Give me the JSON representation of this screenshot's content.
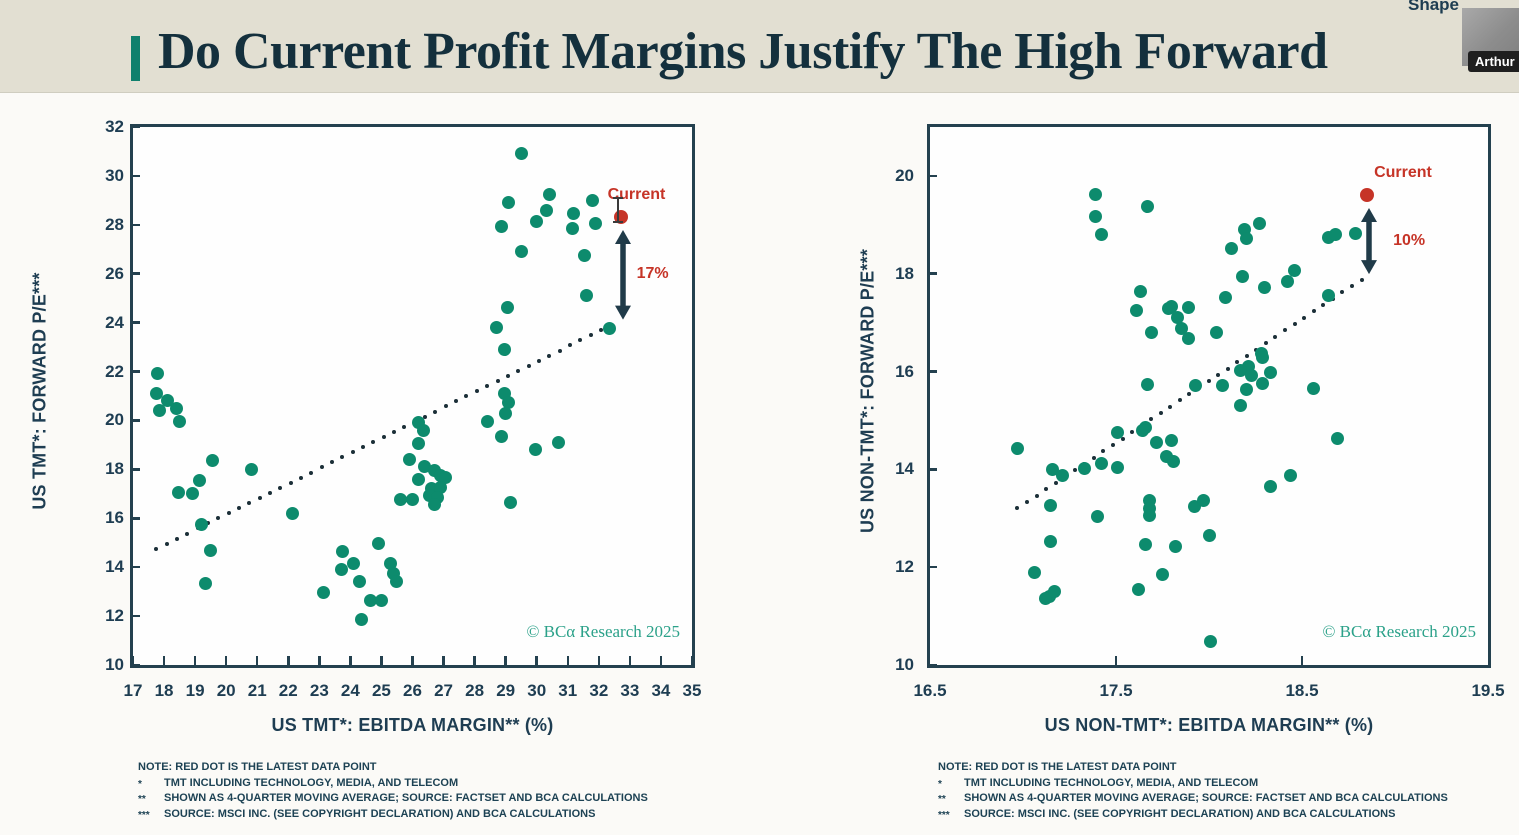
{
  "header": {
    "title": "Do Current Profit Margins Justify The High Forward",
    "overlay_label": "Shape",
    "presenter_name": "Arthur"
  },
  "watermark": "© BCα Research 2025",
  "colors": {
    "accent_teal": "#10806d",
    "dot_teal": "#0d8b6d",
    "dark_navy": "#24414f",
    "label_navy": "#1e3d52",
    "red": "#c63427",
    "trend_dot": "#1b2f38",
    "arrow": "#203b49",
    "watermark_teal": "#2ba189"
  },
  "footnotes": {
    "rows": [
      {
        "marker": "",
        "text": "NOTE: RED DOT IS THE LATEST DATA POINT"
      },
      {
        "marker": "*",
        "text": "TMT INCLUDING TECHNOLOGY, MEDIA, AND TELECOM"
      },
      {
        "marker": "**",
        "text": "SHOWN AS 4-QUARTER MOVING AVERAGE; SOURCE: FACTSET AND BCA CALCULATIONS"
      },
      {
        "marker": "***",
        "text": "SOURCE: MSCI INC. (SEE COPYRIGHT DECLARATION) AND BCA CALCULATIONS"
      }
    ]
  },
  "chart_data": [
    {
      "type": "scatter",
      "name": "us-tmt",
      "xlabel": "US TMT*: EBITDA MARGIN** (%)",
      "ylabel": "US TMT*: FORWARD P/E***",
      "xlim": [
        17,
        35
      ],
      "ylim": [
        10,
        32
      ],
      "x_ticks": [
        "17",
        "18",
        "19",
        "20",
        "21",
        "22",
        "23",
        "24",
        "25",
        "26",
        "27",
        "28",
        "29",
        "30",
        "31",
        "32",
        "33",
        "34",
        "35"
      ],
      "x_tick_values": [
        17,
        18,
        19,
        20,
        21,
        22,
        23,
        24,
        25,
        26,
        27,
        28,
        29,
        30,
        31,
        32,
        33,
        34,
        35
      ],
      "y_ticks": [
        32,
        30,
        28,
        26,
        24,
        22,
        20,
        18,
        16,
        14,
        12,
        10
      ],
      "grid": false,
      "legend": "none",
      "points": [
        [
          17.8,
          21.9
        ],
        [
          17.75,
          21.1
        ],
        [
          18.1,
          20.8
        ],
        [
          17.85,
          20.4
        ],
        [
          18.4,
          20.5
        ],
        [
          18.5,
          19.95
        ],
        [
          19.55,
          18.35
        ],
        [
          20.8,
          18.0
        ],
        [
          19.15,
          17.55
        ],
        [
          18.45,
          17.05
        ],
        [
          18.9,
          17.0
        ],
        [
          19.2,
          15.75
        ],
        [
          19.5,
          14.7
        ],
        [
          19.35,
          13.35
        ],
        [
          22.15,
          16.2
        ],
        [
          23.15,
          12.95
        ],
        [
          23.7,
          13.9
        ],
        [
          23.75,
          14.65
        ],
        [
          24.1,
          14.15
        ],
        [
          24.3,
          13.4
        ],
        [
          24.35,
          11.85
        ],
        [
          24.65,
          12.65
        ],
        [
          25.0,
          12.65
        ],
        [
          24.9,
          14.95
        ],
        [
          25.3,
          14.15
        ],
        [
          25.4,
          13.75
        ],
        [
          25.5,
          13.4
        ],
        [
          25.6,
          16.75
        ],
        [
          26.0,
          16.75
        ],
        [
          26.2,
          19.9
        ],
        [
          26.35,
          19.6
        ],
        [
          26.2,
          19.05
        ],
        [
          25.9,
          18.4
        ],
        [
          26.4,
          18.1
        ],
        [
          26.2,
          17.6
        ],
        [
          26.7,
          17.95
        ],
        [
          26.9,
          17.75
        ],
        [
          27.05,
          17.65
        ],
        [
          26.6,
          17.2
        ],
        [
          26.9,
          17.25
        ],
        [
          26.55,
          16.95
        ],
        [
          26.8,
          16.85
        ],
        [
          26.7,
          16.55
        ],
        [
          28.4,
          19.95
        ],
        [
          28.95,
          21.1
        ],
        [
          29.1,
          20.75
        ],
        [
          29.0,
          20.3
        ],
        [
          28.85,
          19.35
        ],
        [
          29.95,
          18.8
        ],
        [
          30.7,
          19.1
        ],
        [
          29.15,
          16.65
        ],
        [
          28.7,
          23.8
        ],
        [
          28.95,
          22.9
        ],
        [
          29.05,
          24.6
        ],
        [
          29.5,
          30.9
        ],
        [
          29.1,
          28.9
        ],
        [
          30.4,
          29.25
        ],
        [
          30.3,
          28.6
        ],
        [
          30.0,
          28.15
        ],
        [
          28.85,
          27.95
        ],
        [
          31.2,
          28.45
        ],
        [
          31.15,
          27.85
        ],
        [
          31.8,
          29.0
        ],
        [
          31.9,
          28.05
        ],
        [
          29.5,
          26.9
        ],
        [
          31.55,
          26.75
        ],
        [
          31.6,
          25.1
        ],
        [
          32.35,
          23.75
        ]
      ],
      "trendline": {
        "style": "dotted",
        "from": [
          17.75,
          14.75
        ],
        "to": [
          32.4,
          23.9
        ]
      },
      "current_point": {
        "x": 32.7,
        "y": 28.3,
        "label": "Current",
        "gap_label": "17%"
      }
    },
    {
      "type": "scatter",
      "name": "us-non-tmt",
      "xlabel": "US NON-TMT*: EBITDA MARGIN** (%)",
      "ylabel": "US NON-TMT*: FORWARD P/E***",
      "xlim": [
        16.5,
        19.5
      ],
      "ylim": [
        10,
        21
      ],
      "x_ticks": [
        "16.5",
        "17.5",
        "18.5",
        "19.5"
      ],
      "x_tick_values": [
        16.5,
        17.5,
        18.5,
        19.5
      ],
      "x_tick_marks": [
        17.5,
        18.5
      ],
      "y_ticks": [
        20,
        18,
        16,
        14,
        12,
        10
      ],
      "grid": false,
      "legend": "none",
      "points": [
        [
          17.39,
          19.62
        ],
        [
          17.67,
          19.37
        ],
        [
          17.39,
          19.17
        ],
        [
          17.42,
          18.8
        ],
        [
          17.63,
          17.63
        ],
        [
          17.61,
          17.25
        ],
        [
          17.78,
          17.28
        ],
        [
          17.8,
          17.33
        ],
        [
          17.83,
          17.11
        ],
        [
          17.89,
          17.31
        ],
        [
          17.69,
          16.79
        ],
        [
          17.85,
          16.87
        ],
        [
          17.89,
          16.68
        ],
        [
          17.67,
          15.73
        ],
        [
          17.93,
          15.71
        ],
        [
          18.27,
          19.03
        ],
        [
          18.19,
          18.91
        ],
        [
          18.2,
          18.72
        ],
        [
          18.12,
          18.52
        ],
        [
          18.64,
          18.74
        ],
        [
          18.68,
          18.8
        ],
        [
          18.79,
          18.82
        ],
        [
          18.46,
          18.06
        ],
        [
          18.18,
          17.94
        ],
        [
          18.42,
          17.84
        ],
        [
          18.3,
          17.72
        ],
        [
          18.09,
          17.52
        ],
        [
          18.64,
          17.55
        ],
        [
          18.04,
          16.8
        ],
        [
          18.28,
          16.36
        ],
        [
          18.29,
          16.28
        ],
        [
          18.21,
          16.1
        ],
        [
          18.17,
          16.02
        ],
        [
          18.23,
          15.92
        ],
        [
          18.33,
          15.99
        ],
        [
          18.07,
          15.72
        ],
        [
          18.2,
          15.63
        ],
        [
          18.29,
          15.75
        ],
        [
          18.56,
          15.65
        ],
        [
          18.17,
          15.3
        ],
        [
          16.97,
          14.43
        ],
        [
          17.16,
          13.99
        ],
        [
          17.21,
          13.88
        ],
        [
          17.33,
          14.02
        ],
        [
          17.42,
          14.11
        ],
        [
          17.51,
          14.75
        ],
        [
          17.64,
          14.8
        ],
        [
          17.66,
          14.86
        ],
        [
          17.72,
          14.54
        ],
        [
          17.8,
          14.6
        ],
        [
          17.77,
          14.27
        ],
        [
          17.81,
          14.17
        ],
        [
          17.51,
          14.04
        ],
        [
          17.15,
          13.27
        ],
        [
          17.4,
          13.04
        ],
        [
          17.68,
          13.37
        ],
        [
          17.68,
          13.21
        ],
        [
          17.68,
          13.05
        ],
        [
          17.92,
          13.24
        ],
        [
          17.97,
          13.37
        ],
        [
          17.15,
          12.52
        ],
        [
          17.66,
          12.47
        ],
        [
          17.82,
          12.42
        ],
        [
          18.0,
          12.64
        ],
        [
          17.06,
          11.89
        ],
        [
          17.14,
          11.4
        ],
        [
          17.12,
          11.35
        ],
        [
          17.17,
          11.5
        ],
        [
          17.62,
          11.54
        ],
        [
          17.75,
          11.86
        ],
        [
          18.01,
          10.48
        ],
        [
          18.69,
          14.63
        ],
        [
          18.44,
          13.88
        ],
        [
          18.33,
          13.64
        ]
      ],
      "trendline": {
        "style": "dotted",
        "from": [
          16.97,
          13.2
        ],
        "to": [
          18.82,
          17.88
        ]
      },
      "current_point": {
        "x": 18.85,
        "y": 19.6,
        "label": "Current",
        "gap_label": "10%"
      }
    }
  ]
}
